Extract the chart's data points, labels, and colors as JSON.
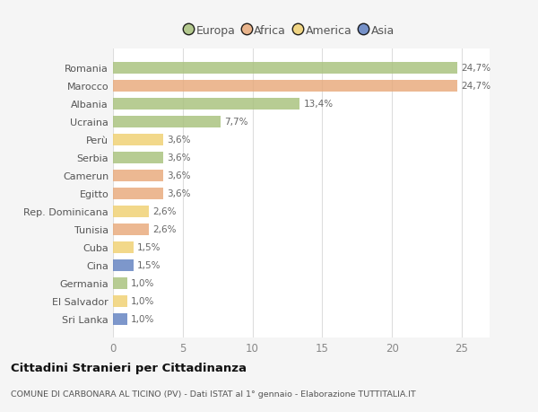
{
  "countries": [
    "Romania",
    "Marocco",
    "Albania",
    "Ucraina",
    "Perù",
    "Serbia",
    "Camerun",
    "Egitto",
    "Rep. Dominicana",
    "Tunisia",
    "Cuba",
    "Cina",
    "Germania",
    "El Salvador",
    "Sri Lanka"
  ],
  "values": [
    24.7,
    24.7,
    13.4,
    7.7,
    3.6,
    3.6,
    3.6,
    3.6,
    2.6,
    2.6,
    1.5,
    1.5,
    1.0,
    1.0,
    1.0
  ],
  "labels": [
    "24,7%",
    "24,7%",
    "13,4%",
    "7,7%",
    "3,6%",
    "3,6%",
    "3,6%",
    "3,6%",
    "2,6%",
    "2,6%",
    "1,5%",
    "1,5%",
    "1,0%",
    "1,0%",
    "1,0%"
  ],
  "continents": [
    "Europa",
    "Africa",
    "Europa",
    "Europa",
    "America",
    "Europa",
    "Africa",
    "Africa",
    "America",
    "Africa",
    "America",
    "Asia",
    "Europa",
    "America",
    "Asia"
  ],
  "colors": {
    "Europa": "#a8c17c",
    "Africa": "#e8a97a",
    "America": "#f0d070",
    "Asia": "#6080c0"
  },
  "legend_items": [
    "Europa",
    "Africa",
    "America",
    "Asia"
  ],
  "legend_colors": [
    "#a8c17c",
    "#e8a97a",
    "#f0d070",
    "#6080c0"
  ],
  "title": "Cittadini Stranieri per Cittadinanza",
  "subtitle": "COMUNE DI CARBONARA AL TICINO (PV) - Dati ISTAT al 1° gennaio - Elaborazione TUTTITALIA.IT",
  "xlim": [
    0,
    27
  ],
  "xticks": [
    0,
    5,
    10,
    15,
    20,
    25
  ],
  "background_color": "#f5f5f5",
  "plot_bg_color": "#ffffff",
  "grid_color": "#dddddd"
}
